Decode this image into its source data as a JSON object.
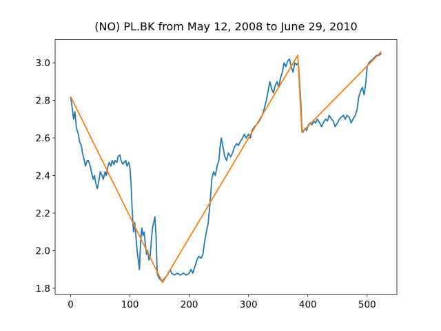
{
  "chart_data": {
    "type": "line",
    "title": "(NO) PL.BK from May 12, 2008 to June 29, 2010",
    "xlim": [
      -26.2,
      550.2
    ],
    "ylim": [
      1.766,
      3.123
    ],
    "xticks": [
      0,
      100,
      200,
      300,
      400,
      500
    ],
    "yticks": [
      1.8,
      {
        "value": 2,
        "label": "2.0"
      },
      2.2,
      2.4,
      2.6,
      2.8,
      {
        "value": 3,
        "label": "3.0"
      }
    ],
    "grid": false,
    "series": [
      {
        "color": "#1f77b4",
        "x": [
          0,
          3,
          5,
          7,
          10,
          13,
          15,
          18,
          20,
          23,
          25,
          28,
          30,
          33,
          35,
          38,
          40,
          43,
          45,
          48,
          50,
          53,
          55,
          58,
          60,
          63,
          65,
          68,
          70,
          73,
          75,
          78,
          80,
          83,
          85,
          88,
          90,
          93,
          95,
          98,
          100,
          102,
          104,
          106,
          108,
          110,
          112,
          114,
          116,
          118,
          120,
          122,
          124,
          126,
          128,
          130,
          132,
          134,
          136,
          138,
          140,
          142,
          144,
          146,
          148,
          150,
          153,
          155,
          158,
          160,
          163,
          165,
          168,
          170,
          175,
          180,
          185,
          190,
          195,
          200,
          203,
          206,
          210,
          213,
          216,
          220,
          223,
          226,
          229,
          232,
          235,
          238,
          241,
          244,
          247,
          250,
          252,
          254,
          257,
          260,
          263,
          266,
          270,
          273,
          276,
          280,
          283,
          286,
          290,
          293,
          296,
          300,
          303,
          306,
          310,
          313,
          316,
          320,
          323,
          326,
          330,
          333,
          336,
          339,
          342,
          345,
          348,
          351,
          354,
          357,
          360,
          363,
          366,
          369,
          372,
          375,
          378,
          381,
          384,
          386,
          388,
          390,
          392,
          395,
          398,
          401,
          404,
          407,
          410,
          413,
          416,
          420,
          423,
          426,
          430,
          433,
          436,
          440,
          443,
          446,
          450,
          453,
          456,
          460,
          463,
          466,
          470,
          473,
          476,
          480,
          483,
          486,
          489,
          492,
          495,
          498,
          500,
          503,
          506,
          510,
          513,
          516,
          520,
          524
        ],
        "values": [
          2.82,
          2.75,
          2.7,
          2.74,
          2.65,
          2.62,
          2.58,
          2.56,
          2.52,
          2.48,
          2.45,
          2.48,
          2.48,
          2.45,
          2.42,
          2.38,
          2.4,
          2.35,
          2.33,
          2.38,
          2.42,
          2.4,
          2.38,
          2.42,
          2.4,
          2.45,
          2.47,
          2.45,
          2.48,
          2.46,
          2.48,
          2.47,
          2.5,
          2.51,
          2.48,
          2.46,
          2.47,
          2.48,
          2.45,
          2.47,
          2.44,
          2.35,
          2.2,
          2.1,
          2.15,
          2.08,
          2.0,
          1.95,
          1.9,
          2.05,
          2.12,
          2.08,
          2.1,
          2.03,
          1.98,
          2.0,
          1.95,
          1.97,
          2.05,
          2.12,
          2.15,
          2.18,
          2.08,
          1.88,
          1.86,
          1.85,
          1.84,
          1.84,
          1.85,
          1.86,
          1.87,
          1.88,
          1.9,
          1.88,
          1.87,
          1.88,
          1.87,
          1.88,
          1.87,
          1.88,
          1.9,
          1.88,
          1.92,
          1.95,
          1.97,
          1.96,
          1.98,
          2.05,
          2.1,
          2.15,
          2.25,
          2.38,
          2.42,
          2.4,
          2.45,
          2.48,
          2.55,
          2.6,
          2.55,
          2.5,
          2.48,
          2.52,
          2.5,
          2.52,
          2.55,
          2.57,
          2.56,
          2.58,
          2.6,
          2.62,
          2.6,
          2.62,
          2.6,
          2.64,
          2.66,
          2.67,
          2.68,
          2.7,
          2.72,
          2.75,
          2.8,
          2.85,
          2.9,
          2.86,
          2.84,
          2.88,
          2.9,
          2.87,
          2.92,
          2.95,
          3.0,
          2.98,
          3.01,
          3.02,
          2.98,
          2.95,
          3.0,
          2.99,
          3.0,
          2.9,
          2.8,
          2.65,
          2.63,
          2.65,
          2.64,
          2.67,
          2.68,
          2.67,
          2.69,
          2.68,
          2.7,
          2.68,
          2.66,
          2.68,
          2.7,
          2.69,
          2.72,
          2.7,
          2.69,
          2.66,
          2.68,
          2.7,
          2.71,
          2.72,
          2.7,
          2.72,
          2.71,
          2.68,
          2.7,
          2.72,
          2.75,
          2.82,
          2.85,
          2.87,
          2.83,
          2.9,
          2.98,
          3.0,
          3.01,
          3.02,
          3.03,
          3.04,
          3.04,
          3.05
        ]
      },
      {
        "color": "#ff7f0e",
        "x": [
          0,
          155,
          383,
          390,
          524
        ],
        "values": [
          2.82,
          1.83,
          3.04,
          2.63,
          3.06
        ]
      }
    ]
  }
}
